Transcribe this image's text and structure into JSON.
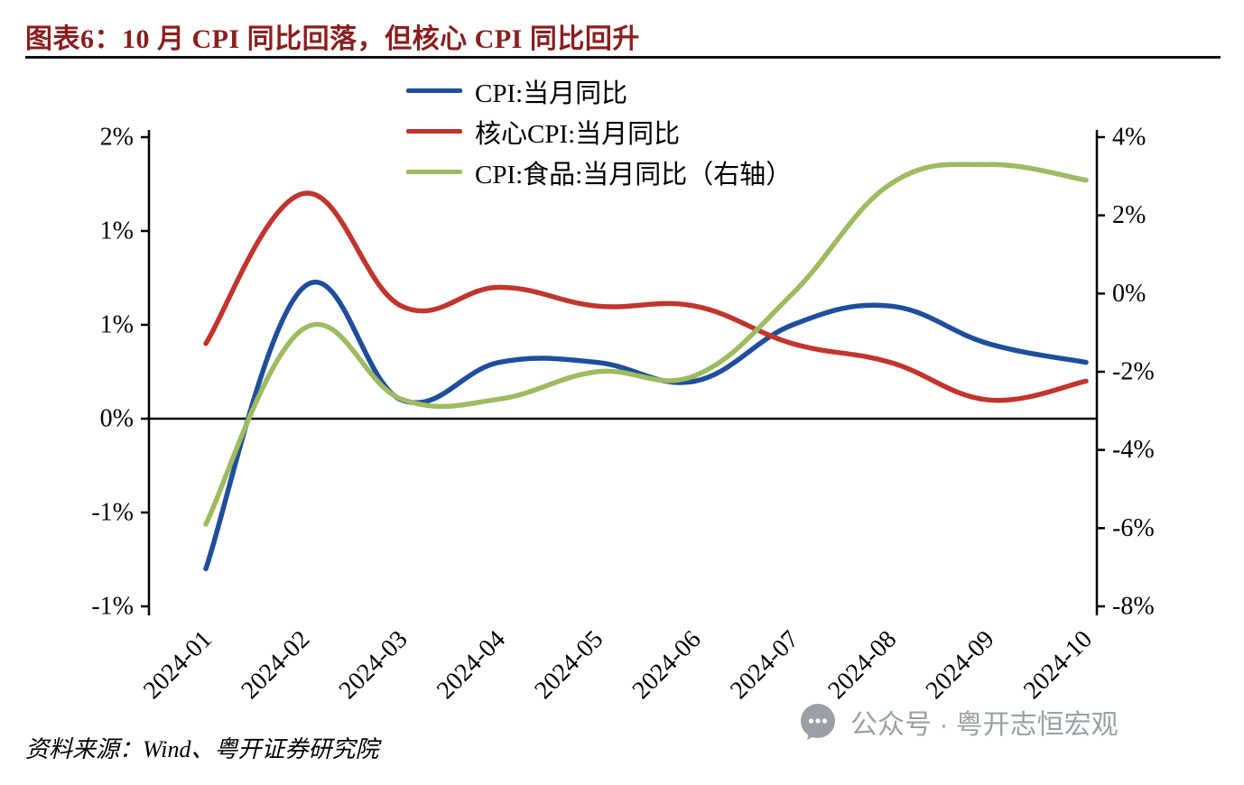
{
  "header": {
    "title": "图表6：10 月 CPI 同比回落，但核心 CPI 同比回升"
  },
  "footer": {
    "source": "资料来源：Wind、粤开证券研究院",
    "watermark": "公众号 · 粤开志恒宏观"
  },
  "colors": {
    "title_text": "#8b1e1e",
    "axis": "#000000",
    "watermark_text": "#9aa0a6"
  },
  "chart_data": {
    "type": "line",
    "title": "图表6：10 月 CPI 同比回落，但核心 CPI 同比回升",
    "x": [
      "2024-01",
      "2024-02",
      "2024-03",
      "2024-04",
      "2024-05",
      "2024-06",
      "2024-07",
      "2024-08",
      "2024-09",
      "2024-10"
    ],
    "series": [
      {
        "name": "CPI:当月同比",
        "axis": "left",
        "color": "#1f4e9c",
        "values": [
          -0.8,
          0.7,
          0.1,
          0.3,
          0.3,
          0.2,
          0.5,
          0.6,
          0.4,
          0.3
        ]
      },
      {
        "name": "核心CPI:当月同比",
        "axis": "left",
        "color": "#c1352d",
        "values": [
          0.4,
          1.2,
          0.6,
          0.7,
          0.6,
          0.6,
          0.4,
          0.3,
          0.1,
          0.2
        ]
      },
      {
        "name": "CPI:食品:当月同比（右轴）",
        "axis": "right",
        "color": "#9dbb61",
        "values": [
          -5.9,
          -0.9,
          -2.7,
          -2.7,
          -2.0,
          -2.1,
          0.0,
          2.8,
          3.3,
          2.9
        ]
      }
    ],
    "left_axis": {
      "unit": "%",
      "min": -1.0,
      "max": 1.5,
      "tick_step": 0.5,
      "tick_labels": [
        "2%",
        "1%",
        "1%",
        "0%",
        "-1%",
        "-1%"
      ]
    },
    "right_axis": {
      "unit": "%",
      "min": -8,
      "max": 4,
      "tick_step": 2,
      "tick_labels": [
        "4%",
        "2%",
        "0%",
        "-2%",
        "-4%",
        "-6%",
        "-8%"
      ]
    },
    "grid": false,
    "smooth": true,
    "legend_position": "top-center"
  }
}
